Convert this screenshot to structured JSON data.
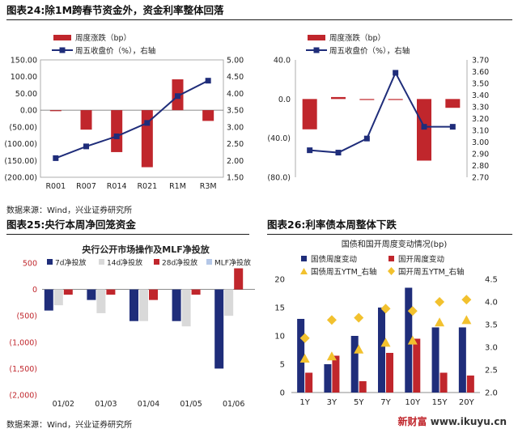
{
  "panels": {
    "c24": {
      "title": "图表24:除1M跨春节资金外，资金利率整体回落",
      "source": "数据来源：Wind，兴业证券研究所"
    },
    "c25": {
      "title": "图表25:央行本周净回笼资金",
      "source": "数据来源：Wind，兴业证券研究所"
    },
    "c26": {
      "title": "图表26:利率债本周整体下跌"
    }
  },
  "watermark": {
    "brand": "新财富",
    "url": "www.ikuyu.cn"
  },
  "chart_data": [
    {
      "id": "c24",
      "type": "bar+line",
      "categories": [
        "R001",
        "R007",
        "R014",
        "R021",
        "R1M",
        "R3M"
      ],
      "series": [
        {
          "name": "周度涨跌（bp）",
          "type": "bar",
          "axis": "left",
          "color": "#c0262c",
          "values": [
            -2,
            -58,
            -125,
            -170,
            92,
            -32
          ]
        },
        {
          "name": "周五收盘价（%），右轴",
          "type": "line",
          "axis": "right",
          "color": "#1f2d7a",
          "values": [
            2.07,
            2.42,
            2.72,
            3.12,
            3.92,
            4.38
          ]
        }
      ],
      "ylim_left": [
        -200,
        150
      ],
      "yticks_left": [
        150,
        -200,
        -150,
        -100,
        -50,
        0,
        50,
        100
      ],
      "ytick_labels_left": [
        "150.00",
        "(200.00)",
        "(150.00)",
        "(100.00)",
        "(50.00)",
        "0.00",
        "50.00",
        "100.00"
      ],
      "ylim_right": [
        1.5,
        5.0
      ],
      "ytick_labels_right": [
        "1.50",
        "2.00",
        "2.50",
        "3.00",
        "3.50",
        "4.00",
        "4.50",
        "5.00"
      ],
      "legend_position": "top-left"
    },
    {
      "id": "c24b",
      "type": "bar+line",
      "categories": [
        "",
        "",
        "",
        "",
        "",
        ""
      ],
      "series": [
        {
          "name": "周度涨跌（bp）",
          "type": "bar",
          "axis": "left",
          "color": "#c0262c",
          "values": [
            -31,
            2,
            -1,
            0,
            -63,
            -9
          ]
        },
        {
          "name": "周五收盘价（%），右轴",
          "type": "line",
          "axis": "right",
          "color": "#1f2d7a",
          "values": [
            2.93,
            2.91,
            3.03,
            3.59,
            3.13,
            3.13
          ]
        }
      ],
      "ylim_left": [
        -80,
        40
      ],
      "ytick_labels_left": [
        "40.0",
        "0.0",
        "(40.0)",
        "(80.0)"
      ],
      "ylim_right": [
        2.7,
        3.7
      ],
      "ytick_labels_right": [
        "2.70",
        "2.80",
        "2.90",
        "3.00",
        "3.10",
        "3.20",
        "3.30",
        "3.40",
        "3.50",
        "3.60",
        "3.70"
      ],
      "legend_position": "top-left"
    },
    {
      "id": "c25",
      "type": "bar",
      "title": "央行公开市场操作及MLF净投放",
      "categories": [
        "01/02",
        "01/03",
        "01/04",
        "01/05",
        "01/06"
      ],
      "series": [
        {
          "name": "7d净投放",
          "color": "#1f2d7a",
          "values": [
            -400,
            -200,
            -600,
            -600,
            -1500
          ]
        },
        {
          "name": "14d净投放",
          "color": "#d9d9d9",
          "values": [
            -300,
            -450,
            -600,
            -700,
            -500
          ]
        },
        {
          "name": "28d净投放",
          "color": "#c0262c",
          "values": [
            -100,
            -100,
            -200,
            -100,
            400
          ]
        },
        {
          "name": "MLF净投放",
          "color": "#b4c7e7",
          "values": [
            0,
            0,
            0,
            0,
            0
          ]
        }
      ],
      "ylim": [
        -2000,
        500
      ],
      "ytick_labels": [
        "500",
        "0",
        "(500)",
        "(1,000)",
        "(1,500)",
        "(2,000)"
      ],
      "legend_position": "top"
    },
    {
      "id": "c26",
      "type": "bar+scatter",
      "title": "国债和国开周度变动情况(bp)",
      "categories": [
        "1Y",
        "3Y",
        "5Y",
        "7Y",
        "10Y",
        "15Y",
        "20Y"
      ],
      "series": [
        {
          "name": "国债周度变动",
          "type": "bar",
          "axis": "left",
          "color": "#1f2d7a",
          "values": [
            13,
            5,
            10,
            15,
            18.5,
            11.5,
            11.5
          ]
        },
        {
          "name": "国开周度变动",
          "type": "bar",
          "axis": "left",
          "color": "#c0262c",
          "values": [
            3.5,
            6.5,
            2,
            7,
            9.5,
            3.5,
            3
          ]
        },
        {
          "name": "国债周五YTM_右轴",
          "type": "scatter",
          "axis": "right",
          "color": "#f2c12e",
          "values": [
            2.75,
            2.8,
            2.95,
            3.1,
            3.15,
            3.55,
            3.6
          ]
        },
        {
          "name": "国开周五YTM_右轴",
          "type": "scatter",
          "axis": "right",
          "color": "#f2c12e",
          "values": [
            3.2,
            3.6,
            3.65,
            3.85,
            3.8,
            4.0,
            4.05
          ]
        }
      ],
      "ylim_left": [
        0,
        20
      ],
      "ytick_labels_left": [
        "0",
        "5",
        "10",
        "15",
        "20"
      ],
      "ylim_right": [
        2.0,
        4.5
      ],
      "ytick_labels_right": [
        "2.0",
        "2.5",
        "3.0",
        "3.5",
        "4.0",
        "4.5"
      ],
      "legend_position": "top"
    }
  ]
}
